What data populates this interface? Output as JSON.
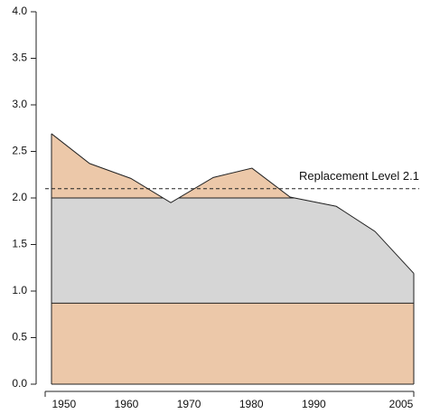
{
  "chart_data": {
    "type": "area",
    "x": [
      1948,
      1954.1,
      1960.7,
      1967.1,
      1973.9,
      1980.1,
      1986.2,
      1993.6,
      1999.8,
      2006
    ],
    "values": [
      2.69,
      2.37,
      2.21,
      1.95,
      2.22,
      2.32,
      2.01,
      1.91,
      1.64,
      1.19
    ],
    "color": "#ecc8a9",
    "band_levels": [
      0.87,
      2.0
    ],
    "band_color": "#d6d6d6",
    "reference_lines": [
      {
        "value": 2.1,
        "label": "Replacement Level 2.1"
      }
    ],
    "xlim": [
      1948,
      2006
    ],
    "xticks": [
      1950,
      1960,
      1970,
      1980,
      1990,
      2005
    ],
    "ylim": [
      0,
      4
    ],
    "yticks": [
      {
        "value": 0,
        "label": "0.0"
      },
      {
        "value": 0.5,
        "label": "0.5"
      },
      {
        "value": 1,
        "label": "1.0"
      },
      {
        "value": 1.5,
        "label": "1.5"
      },
      {
        "value": 2,
        "label": "2.0"
      },
      {
        "value": 2.5,
        "label": "2.5"
      },
      {
        "value": 3,
        "label": "3.0"
      },
      {
        "value": 3.5,
        "label": "3.5"
      },
      {
        "value": 4,
        "label": "4.0"
      }
    ]
  }
}
